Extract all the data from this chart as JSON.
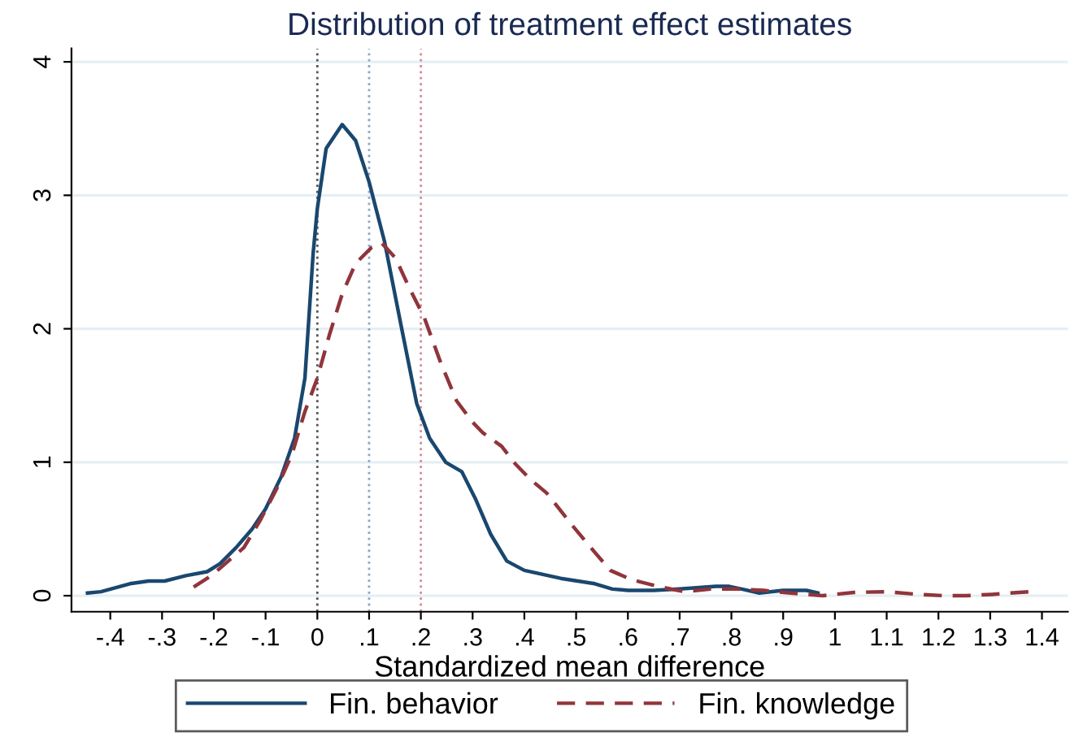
{
  "chart_data": {
    "type": "line",
    "title": "Distribution of treatment effect estimates",
    "xlabel": "Standardized mean difference",
    "xlim": [
      -0.475,
      1.45
    ],
    "ylim": [
      -0.12,
      4.1
    ],
    "xticks": [
      {
        "value": -0.4,
        "label": "-.4"
      },
      {
        "value": -0.3,
        "label": "-.3"
      },
      {
        "value": -0.2,
        "label": "-.2"
      },
      {
        "value": -0.1,
        "label": "-.1"
      },
      0,
      {
        "value": 0.1,
        "label": ".1"
      },
      {
        "value": 0.2,
        "label": ".2"
      },
      {
        "value": 0.3,
        "label": ".3"
      },
      {
        "value": 0.4,
        "label": ".4"
      },
      {
        "value": 0.5,
        "label": ".5"
      },
      {
        "value": 0.6,
        "label": ".6"
      },
      {
        "value": 0.7,
        "label": ".7"
      },
      {
        "value": 0.8,
        "label": ".8"
      },
      {
        "value": 0.9,
        "label": ".9"
      },
      1,
      1.1,
      1.2,
      1.3,
      1.4
    ],
    "yticks": [
      0,
      1,
      2,
      3,
      4
    ],
    "grid": "y",
    "legend": "bottom",
    "marker": "none",
    "ref_lines": [
      {
        "axis": "x",
        "value": 0,
        "color": "#555555",
        "line_style": "dotted"
      },
      {
        "axis": "x",
        "value": 0.1,
        "color": "#8fa6c8",
        "line_style": "dotted"
      },
      {
        "axis": "x",
        "value": 0.2,
        "color": "#d48c98",
        "line_style": "dotted"
      }
    ],
    "series": [
      {
        "name": "Fin. behavior",
        "color": "#1a476f",
        "line_style": "solid",
        "x": [
          -0.444,
          -0.418,
          -0.362,
          -0.326,
          -0.295,
          -0.254,
          -0.213,
          -0.188,
          -0.157,
          -0.126,
          -0.1,
          -0.07,
          -0.044,
          -0.024,
          -0.008,
          0,
          0.017,
          0.048,
          0.074,
          0.1,
          0.13,
          0.161,
          0.192,
          0.217,
          0.248,
          0.279,
          0.305,
          0.335,
          0.366,
          0.4,
          0.47,
          0.536,
          0.57,
          0.6,
          0.65,
          0.7,
          0.77,
          0.796,
          0.82,
          0.854,
          0.9,
          0.945,
          0.967
        ],
        "values": [
          0.02,
          0.03,
          0.09,
          0.11,
          0.11,
          0.15,
          0.18,
          0.24,
          0.36,
          0.5,
          0.65,
          0.89,
          1.18,
          1.63,
          2.57,
          2.9,
          3.35,
          3.53,
          3.41,
          3.1,
          2.65,
          2.04,
          1.44,
          1.18,
          1.0,
          0.93,
          0.73,
          0.46,
          0.26,
          0.19,
          0.13,
          0.09,
          0.05,
          0.04,
          0.04,
          0.05,
          0.07,
          0.07,
          0.05,
          0.02,
          0.04,
          0.04,
          0.02
        ]
      },
      {
        "name": "Fin. knowledge",
        "color": "#90353b",
        "line_style": "dashed",
        "x": [
          -0.239,
          -0.203,
          -0.172,
          -0.142,
          -0.111,
          -0.08,
          -0.049,
          -0.024,
          0,
          0.023,
          0.048,
          0.074,
          0.105,
          0.125,
          0.151,
          0.176,
          0.207,
          0.238,
          0.269,
          0.3,
          0.32,
          0.356,
          0.382,
          0.412,
          0.443,
          0.494,
          0.535,
          0.566,
          0.607,
          0.658,
          0.709,
          0.76,
          0.812,
          0.863,
          0.914,
          0.976,
          1.037,
          1.099,
          1.16,
          1.212,
          1.253,
          1.304,
          1.375
        ],
        "values": [
          0.065,
          0.155,
          0.26,
          0.36,
          0.56,
          0.79,
          1.06,
          1.38,
          1.63,
          1.95,
          2.26,
          2.49,
          2.61,
          2.64,
          2.53,
          2.32,
          2.08,
          1.75,
          1.46,
          1.3,
          1.22,
          1.12,
          0.99,
          0.87,
          0.77,
          0.52,
          0.33,
          0.19,
          0.12,
          0.07,
          0.03,
          0.05,
          0.05,
          0.04,
          0.02,
          0.0,
          0.025,
          0.03,
          0.01,
          0.0,
          0.0,
          0.01,
          0.03
        ]
      }
    ]
  }
}
